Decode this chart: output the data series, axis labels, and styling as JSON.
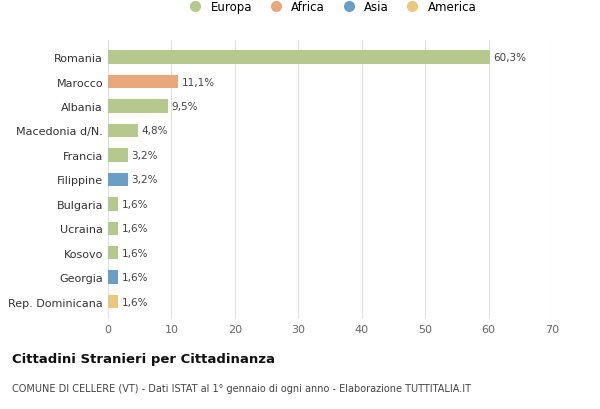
{
  "categories": [
    "Romania",
    "Marocco",
    "Albania",
    "Macedonia d/N.",
    "Francia",
    "Filippine",
    "Bulgaria",
    "Ucraina",
    "Kosovo",
    "Georgia",
    "Rep. Dominicana"
  ],
  "values": [
    60.3,
    11.1,
    9.5,
    4.8,
    3.2,
    3.2,
    1.6,
    1.6,
    1.6,
    1.6,
    1.6
  ],
  "labels": [
    "60,3%",
    "11,1%",
    "9,5%",
    "4,8%",
    "3,2%",
    "3,2%",
    "1,6%",
    "1,6%",
    "1,6%",
    "1,6%",
    "1,6%"
  ],
  "colors": [
    "#b5c98e",
    "#e8a87c",
    "#b5c98e",
    "#b5c98e",
    "#b5c98e",
    "#6b9ec4",
    "#b5c98e",
    "#b5c98e",
    "#b5c98e",
    "#6b9ec4",
    "#e8c97e"
  ],
  "legend_labels": [
    "Europa",
    "Africa",
    "Asia",
    "America"
  ],
  "legend_colors": [
    "#b5c98e",
    "#e8a87c",
    "#6b9ec4",
    "#e8c97e"
  ],
  "title": "Cittadini Stranieri per Cittadinanza",
  "subtitle": "COMUNE DI CELLERE (VT) - Dati ISTAT al 1° gennaio di ogni anno - Elaborazione TUTTITALIA.IT",
  "xlim": [
    0,
    70
  ],
  "xticks": [
    0,
    10,
    20,
    30,
    40,
    50,
    60,
    70
  ],
  "bg_color": "#ffffff",
  "grid_color": "#e0e0e0",
  "bar_height": 0.55
}
